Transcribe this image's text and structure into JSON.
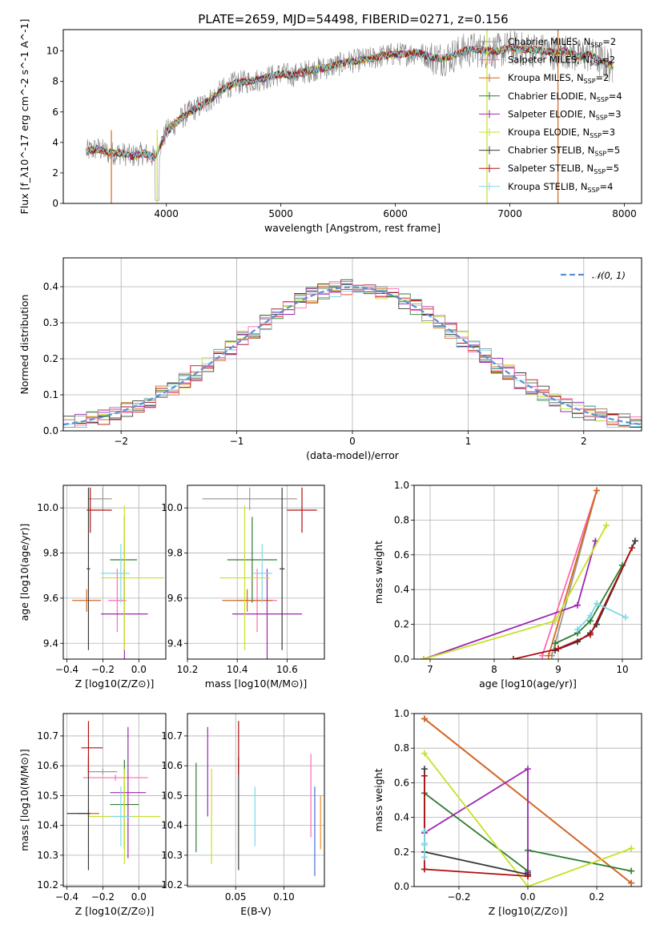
{
  "title": "PLATE=2659, MJD=54498, FIBERID=0271, z=0.156",
  "colors": {
    "data": "#808080",
    "chabrier_miles": "#9a9a9a",
    "salpeter_miles": "#ff69b4",
    "kroupa_miles": "#d2691e",
    "chabrier_elodie": "#2e7d32",
    "salpeter_elodie": "#9c27b0",
    "kroupa_elodie": "#c8e028",
    "chabrier_stelib": "#3a3a3a",
    "salpeter_stelib": "#b01010",
    "kroupa_stelib": "#80d8e8",
    "extra_blue": "#4a6fd0",
    "extra_orange": "#f28c28",
    "normal": "#5b8fd6"
  },
  "legend_top": [
    "Chabrier MILES, N_SSP=2",
    "Salpeter MILES, N_SSP=2",
    "Kroupa MILES, N_SSP=2",
    "Chabrier ELODIE, N_SSP=4",
    "Salpeter ELODIE, N_SSP=3",
    "Kroupa ELODIE, N_SSP=3",
    "Chabrier STELIB, N_SSP=5",
    "Salpeter STELIB, N_SSP=5",
    "Kroupa STELIB, N_SSP=4"
  ],
  "legend_hist": "𝒩(0, 1)",
  "chart_data": [
    {
      "panel": "spectrum",
      "type": "line",
      "title": "PLATE=2659, MJD=54498, FIBERID=0271, z=0.156",
      "xlabel": "wavelength [Angstrom, rest frame]",
      "ylabel": "Flux [f_λ10^-17 erg cm^-2 s^-1 A^-1]",
      "xlim": [
        3100,
        8150
      ],
      "ylim": [
        0,
        11.4
      ],
      "xticks": [
        4000,
        5000,
        6000,
        7000,
        8000
      ],
      "yticks": [
        0,
        2,
        4,
        6,
        8,
        10
      ],
      "continuum": [
        [
          3300,
          3.4
        ],
        [
          3400,
          3.6
        ],
        [
          3500,
          3.3
        ],
        [
          3600,
          3.3
        ],
        [
          3700,
          3.1
        ],
        [
          3800,
          3.3
        ],
        [
          3900,
          3.0
        ],
        [
          4000,
          4.7
        ],
        [
          4100,
          5.4
        ],
        [
          4200,
          6.0
        ],
        [
          4300,
          6.4
        ],
        [
          4400,
          6.9
        ],
        [
          4500,
          7.5
        ],
        [
          4600,
          7.9
        ],
        [
          4700,
          8.0
        ],
        [
          4800,
          8.1
        ],
        [
          4900,
          8.3
        ],
        [
          5000,
          8.5
        ],
        [
          5100,
          8.4
        ],
        [
          5200,
          8.6
        ],
        [
          5300,
          8.8
        ],
        [
          5400,
          8.9
        ],
        [
          5500,
          9.1
        ],
        [
          5600,
          9.3
        ],
        [
          5700,
          9.4
        ],
        [
          5800,
          9.5
        ],
        [
          5900,
          9.7
        ],
        [
          6000,
          9.8
        ],
        [
          6100,
          9.8
        ],
        [
          6200,
          9.9
        ],
        [
          6300,
          9.6
        ],
        [
          6400,
          9.5
        ],
        [
          6500,
          9.7
        ],
        [
          6600,
          10.0
        ],
        [
          6700,
          10.1
        ],
        [
          6800,
          10.0
        ],
        [
          6900,
          10.0
        ],
        [
          7000,
          10.2
        ],
        [
          7100,
          10.1
        ],
        [
          7200,
          10.1
        ],
        [
          7300,
          10.0
        ],
        [
          7400,
          9.9
        ],
        [
          7500,
          10.0
        ],
        [
          7600,
          9.6
        ],
        [
          7700,
          9.8
        ],
        [
          7800,
          9.3
        ],
        [
          7900,
          9.0
        ]
      ],
      "sharp_drops": [
        [
          3520,
          0
        ],
        [
          3920,
          0
        ],
        [
          6800,
          0
        ],
        [
          7420,
          0
        ]
      ],
      "models": [
        "Chabrier MILES",
        "Salpeter MILES",
        "Kroupa MILES",
        "Chabrier ELODIE",
        "Salpeter ELODIE",
        "Kroupa ELODIE",
        "Chabrier STELIB",
        "Salpeter STELIB",
        "Kroupa STELIB"
      ]
    },
    {
      "panel": "residual_histogram",
      "type": "histogram",
      "xlabel": "(data-model)/error",
      "ylabel": "Normed distribution",
      "xlim": [
        -2.5,
        2.5
      ],
      "ylim": [
        0,
        0.48
      ],
      "xticks": [
        -2,
        -1,
        0,
        1,
        2
      ],
      "yticks": [
        0.0,
        0.1,
        0.2,
        0.3,
        0.4
      ],
      "bin_width": 0.1,
      "reference_curve": "N(0,1)",
      "grid": true
    },
    {
      "panel": "age_vs_Z",
      "type": "errorbar",
      "xlabel": "Z [log10(Z/Z⊙)]",
      "ylabel": "age  [log10(age/yr)]",
      "xlim": [
        -0.42,
        0.15
      ],
      "ylim": [
        9.33,
        10.1
      ],
      "xticks": [
        -0.4,
        -0.2,
        0.0
      ],
      "yticks": [
        9.4,
        9.6,
        9.8,
        10.0
      ],
      "points": [
        {
          "name": "Chabrier MILES",
          "x": -0.2,
          "y": 10.04,
          "xerr": [
            0.08,
            0.05
          ],
          "yerr": 0.05
        },
        {
          "name": "Salpeter MILES",
          "x": -0.12,
          "y": 9.59,
          "xerr": [
            0.05,
            0.05
          ],
          "yerr": 0.14
        },
        {
          "name": "Kroupa MILES",
          "x": -0.29,
          "y": 9.59,
          "xerr": [
            0.08,
            0.08
          ],
          "yerr": 0.05
        },
        {
          "name": "Chabrier ELODIE",
          "x": -0.08,
          "y": 9.77,
          "xerr": [
            0.08,
            0.07
          ],
          "yerr": 0.19
        },
        {
          "name": "Salpeter ELODIE",
          "x": -0.08,
          "y": 9.53,
          "xerr": [
            0.13,
            0.13
          ],
          "yerr": 0.2
        },
        {
          "name": "Kroupa ELODIE",
          "x": -0.08,
          "y": 9.69,
          "xerr": [
            0.13,
            0.22
          ],
          "yerr": 0.32
        },
        {
          "name": "Chabrier STELIB",
          "x": -0.28,
          "y": 9.73,
          "xerr": [
            0.01,
            0.01
          ],
          "yerr": 0.36
        },
        {
          "name": "Salpeter STELIB",
          "x": -0.27,
          "y": 9.99,
          "xerr": [
            0.02,
            0.12
          ],
          "yerr": 0.1
        },
        {
          "name": "Kroupa STELIB",
          "x": -0.1,
          "y": 9.71,
          "xerr": [
            0.11,
            0.05
          ],
          "yerr": 0.13
        }
      ]
    },
    {
      "panel": "age_vs_mass",
      "type": "errorbar",
      "xlabel": "mass [log10(M/M⊙)]",
      "xlim": [
        10.2,
        10.75
      ],
      "ylim": [
        9.33,
        10.1
      ],
      "xticks": [
        10.2,
        10.4,
        10.6
      ],
      "yticks": [
        9.4,
        9.6,
        9.8,
        10.0
      ],
      "points": [
        {
          "name": "Chabrier MILES",
          "x": 10.45,
          "y": 10.04,
          "xerr": [
            0.19,
            0.19
          ],
          "yerr": 0.05
        },
        {
          "name": "Salpeter MILES",
          "x": 10.48,
          "y": 9.59,
          "xerr": [
            0.08,
            0.08
          ],
          "yerr": 0.14
        },
        {
          "name": "Kroupa MILES",
          "x": 10.44,
          "y": 9.59,
          "xerr": [
            0.1,
            0.1
          ],
          "yerr": 0.05
        },
        {
          "name": "Chabrier ELODIE",
          "x": 10.46,
          "y": 9.77,
          "xerr": [
            0.1,
            0.1
          ],
          "yerr": 0.19
        },
        {
          "name": "Salpeter ELODIE",
          "x": 10.52,
          "y": 9.53,
          "xerr": [
            0.14,
            0.14
          ],
          "yerr": 0.2
        },
        {
          "name": "Kroupa ELODIE",
          "x": 10.43,
          "y": 9.69,
          "xerr": [
            0.1,
            0.1
          ],
          "yerr": 0.32
        },
        {
          "name": "Chabrier STELIB",
          "x": 10.58,
          "y": 9.73,
          "xerr": [
            0.01,
            0.01
          ],
          "yerr": 0.36
        },
        {
          "name": "Salpeter STELIB",
          "x": 10.66,
          "y": 9.99,
          "xerr": [
            0.06,
            0.06
          ],
          "yerr": 0.1
        },
        {
          "name": "Kroupa STELIB",
          "x": 10.5,
          "y": 9.71,
          "xerr": [
            0.04,
            0.04
          ],
          "yerr": 0.13
        }
      ]
    },
    {
      "panel": "massweight_vs_age",
      "type": "line",
      "xlabel": "age  [log10(age/yr)]",
      "ylabel": "mass weight",
      "xlim": [
        6.75,
        10.3
      ],
      "ylim": [
        0,
        1
      ],
      "xticks": [
        7,
        8,
        9,
        10
      ],
      "yticks": [
        0.0,
        0.2,
        0.4,
        0.6,
        0.8,
        1.0
      ],
      "series": [
        {
          "name": "Chabrier MILES",
          "x": [
            8.9,
            9.6
          ],
          "y": [
            0.02,
            0.97
          ]
        },
        {
          "name": "Salpeter MILES",
          "x": [
            8.75,
            9.6
          ],
          "y": [
            0.02,
            0.97
          ]
        },
        {
          "name": "Kroupa MILES",
          "x": [
            8.85,
            9.6
          ],
          "y": [
            0.02,
            0.97
          ]
        },
        {
          "name": "Chabrier ELODIE",
          "x": [
            8.95,
            9.3,
            9.5,
            10.0
          ],
          "y": [
            0.09,
            0.15,
            0.22,
            0.54
          ]
        },
        {
          "name": "Salpeter ELODIE",
          "x": [
            6.9,
            9.3,
            9.58
          ],
          "y": [
            0.0,
            0.31,
            0.68
          ]
        },
        {
          "name": "Kroupa ELODIE",
          "x": [
            6.9,
            8.95,
            9.75
          ],
          "y": [
            0.0,
            0.22,
            0.77
          ]
        },
        {
          "name": "Chabrier STELIB",
          "x": [
            8.95,
            9.3,
            9.5,
            9.6,
            10.2
          ],
          "y": [
            0.05,
            0.1,
            0.15,
            0.2,
            0.68
          ]
        },
        {
          "name": "Salpeter STELIB",
          "x": [
            8.3,
            9.0,
            9.5,
            10.15
          ],
          "y": [
            0.0,
            0.06,
            0.14,
            0.64
          ]
        },
        {
          "name": "Kroupa STELIB",
          "x": [
            9.3,
            9.5,
            9.6,
            10.05
          ],
          "y": [
            0.17,
            0.25,
            0.32,
            0.24
          ]
        }
      ]
    },
    {
      "panel": "mass_vs_Z",
      "type": "errorbar",
      "xlabel": "Z [log10(Z/Z⊙)]",
      "ylabel": "mass [log10(M/M⊙)]",
      "xlim": [
        -0.42,
        0.15
      ],
      "ylim": [
        10.195,
        10.775
      ],
      "xticks": [
        -0.4,
        -0.2,
        0.0
      ],
      "yticks": [
        10.2,
        10.3,
        10.4,
        10.5,
        10.6,
        10.7
      ],
      "points": [
        {
          "name": "Chabrier MILES",
          "x": -0.2,
          "y": 10.58,
          "xerr": [
            0.08,
            0.08
          ],
          "yerr": 0.01
        },
        {
          "name": "Salpeter MILES",
          "x": -0.13,
          "y": 10.56,
          "xerr": [
            0.18,
            0.18
          ],
          "yerr": 0.01
        },
        {
          "name": "Kroupa MILES",
          "x": -0.28,
          "y": 10.44,
          "xerr": [
            0.06,
            0.06
          ],
          "yerr": 0.01
        },
        {
          "name": "Chabrier ELODIE",
          "x": -0.08,
          "y": 10.47,
          "xerr": [
            0.08,
            0.08
          ],
          "yerr": 0.15
        },
        {
          "name": "Salpeter ELODIE",
          "x": -0.06,
          "y": 10.51,
          "xerr": [
            0.1,
            0.1
          ],
          "yerr": 0.22
        },
        {
          "name": "Kroupa ELODIE",
          "x": -0.08,
          "y": 10.43,
          "xerr": [
            0.2,
            0.2
          ],
          "yerr": 0.16
        },
        {
          "name": "Chabrier STELIB",
          "x": -0.28,
          "y": 10.44,
          "xerr": [
            0.12,
            0.01
          ],
          "yerr": 0.19
        },
        {
          "name": "Salpeter STELIB",
          "x": -0.28,
          "y": 10.66,
          "xerr": [
            0.04,
            0.08
          ],
          "yerr": 0.09
        },
        {
          "name": "Kroupa STELIB",
          "x": -0.1,
          "y": 10.43,
          "xerr": [
            0.06,
            0.06
          ],
          "yerr": 0.1
        }
      ]
    },
    {
      "panel": "mass_vs_EBV",
      "type": "errorbar",
      "xlabel": "E(B-V)",
      "xlim": [
        0.0,
        0.142
      ],
      "ylim": [
        10.195,
        10.775
      ],
      "xticks": [
        0.05,
        0.1
      ],
      "yticks": [
        10.2,
        10.3,
        10.4,
        10.5,
        10.6,
        10.7
      ],
      "points": [
        {
          "name": "Chabrier ELODIE",
          "x": 0.009,
          "y": 10.46,
          "xerr": 0,
          "yerr": 0.15
        },
        {
          "name": "Kroupa ELODIE",
          "x": 0.025,
          "y": 10.43,
          "xerr": 0,
          "yerr": 0.16
        },
        {
          "name": "Salpeter ELODIE",
          "x": 0.021,
          "y": 10.58,
          "xerr": 0,
          "yerr": 0.15
        },
        {
          "name": "Chabrier STELIB",
          "x": 0.053,
          "y": 10.44,
          "xerr": 0,
          "yerr": 0.19
        },
        {
          "name": "Salpeter STELIB",
          "x": 0.053,
          "y": 10.66,
          "xerr": 0,
          "yerr": 0.09
        },
        {
          "name": "Kroupa STELIB",
          "x": 0.07,
          "y": 10.43,
          "xerr": 0,
          "yerr": 0.1
        },
        {
          "name": "Salpeter MILES",
          "x": 0.128,
          "y": 10.5,
          "xerr": 0,
          "yerr": 0.14
        },
        {
          "name": "extra blue",
          "x": 0.132,
          "y": 10.38,
          "xerr": 0,
          "yerr": 0.15
        },
        {
          "name": "extra orange",
          "x": 0.138,
          "y": 10.41,
          "xerr": 0,
          "yerr": 0.09
        }
      ]
    },
    {
      "panel": "massweight_vs_Z",
      "type": "line",
      "xlabel": "Z [log10(Z/Z⊙)]",
      "ylabel": "mass weight",
      "xlim": [
        -0.33,
        0.33
      ],
      "ylim": [
        0,
        1
      ],
      "xticks": [
        -0.2,
        0.0,
        0.2
      ],
      "yticks": [
        0.0,
        0.2,
        0.4,
        0.6,
        0.8,
        1.0
      ],
      "series": [
        {
          "name": "Chabrier MILES",
          "x": [
            -0.3,
            0.3
          ],
          "y": [
            0.97,
            0.02
          ]
        },
        {
          "name": "Salpeter MILES",
          "x": [
            -0.3,
            0.3
          ],
          "y": [
            0.97,
            0.02
          ]
        },
        {
          "name": "Kroupa MILES",
          "x": [
            -0.3,
            0.3
          ],
          "y": [
            0.97,
            0.02
          ]
        },
        {
          "name": "Chabrier ELODIE",
          "x": [
            -0.3,
            0.0,
            0.0,
            0.3
          ],
          "y": [
            0.54,
            0.09,
            0.21,
            0.09
          ]
        },
        {
          "name": "Salpeter ELODIE",
          "x": [
            -0.3,
            0.0,
            0.0
          ],
          "y": [
            0.31,
            0.68,
            0.08
          ]
        },
        {
          "name": "Kroupa ELODIE",
          "x": [
            -0.3,
            0.0,
            0.3
          ],
          "y": [
            0.77,
            0.0,
            0.22
          ]
        },
        {
          "name": "Chabrier STELIB",
          "x": [
            -0.3,
            -0.3,
            0.0,
            0.0
          ],
          "y": [
            0.68,
            0.2,
            0.07,
            0.07
          ]
        },
        {
          "name": "Salpeter STELIB",
          "x": [
            -0.3,
            -0.3,
            0.0,
            0.0
          ],
          "y": [
            0.64,
            0.1,
            0.06,
            0.06
          ]
        },
        {
          "name": "Kroupa STELIB",
          "x": [
            -0.3,
            -0.3,
            -0.3,
            -0.3
          ],
          "y": [
            0.32,
            0.24,
            0.17,
            0.25
          ]
        }
      ]
    }
  ]
}
